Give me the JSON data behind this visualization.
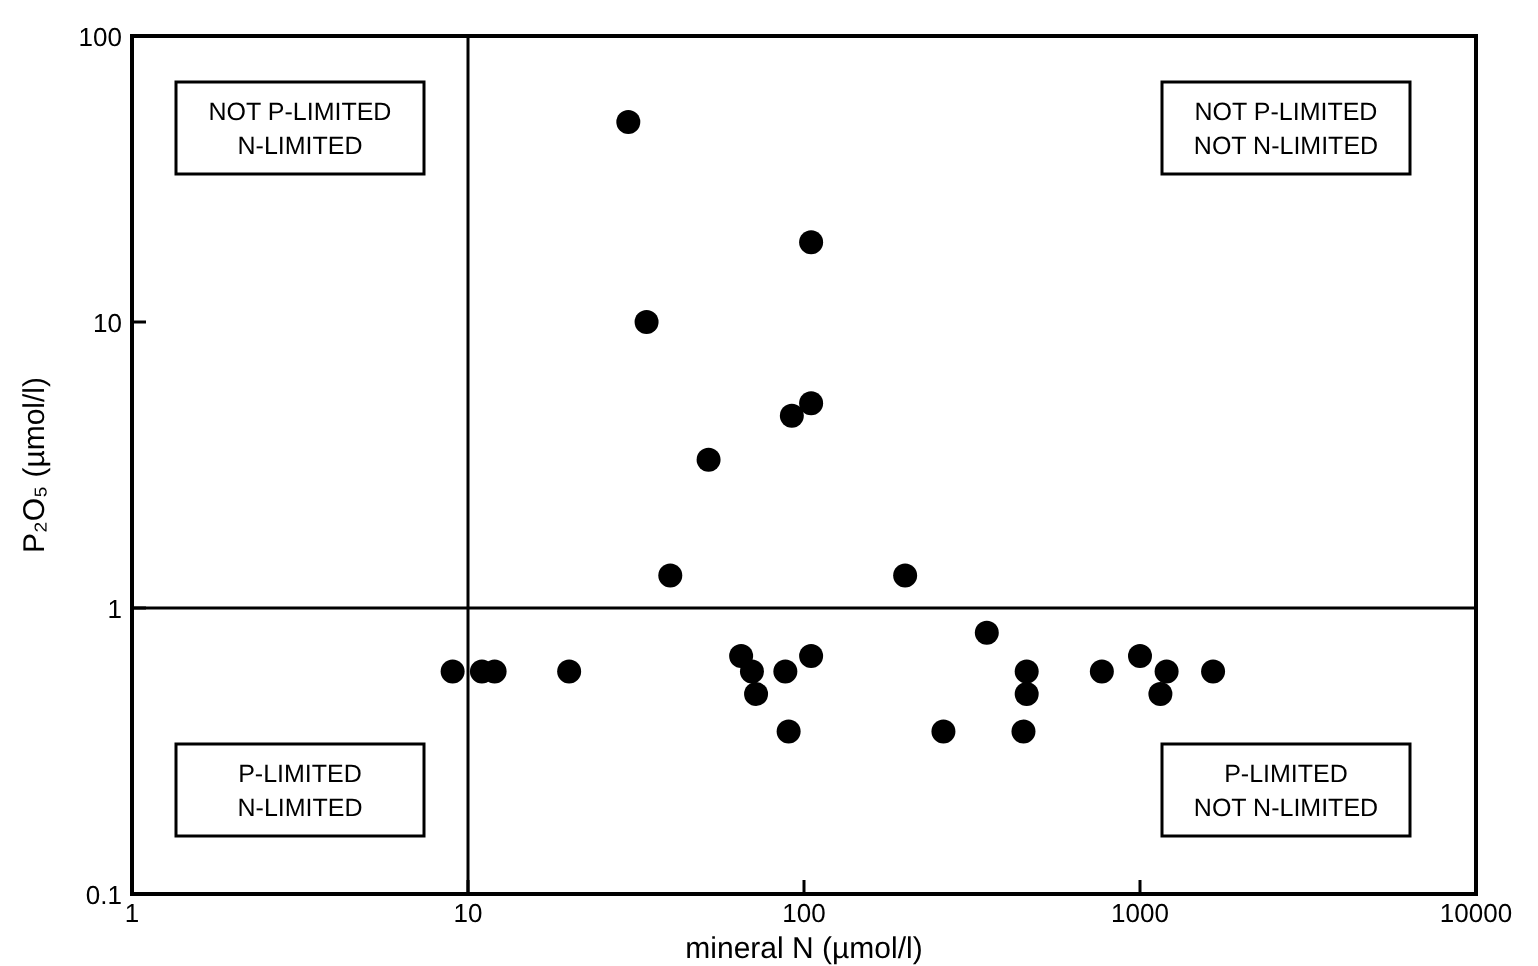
{
  "chart_data": {
    "type": "scatter",
    "xlabel": "mineral N (µmol/l)",
    "ylabel": "P₂O₅ (µmol/l)",
    "log": "xy",
    "xlim": [
      1,
      10000
    ],
    "ylim": [
      0.1,
      100
    ],
    "xticks": [
      1,
      10,
      100,
      1000,
      10000
    ],
    "yticks": [
      0.1,
      1,
      10,
      100
    ],
    "marker": "circle",
    "grid": false,
    "x": [
      30,
      34,
      40,
      52,
      92,
      105,
      105,
      200,
      9,
      11,
      12,
      20,
      65,
      70,
      72,
      88,
      90,
      105,
      350,
      260,
      460,
      460,
      450,
      770,
      1000,
      1150,
      1200,
      1650
    ],
    "values": [
      50,
      10,
      1.3,
      3.3,
      4.7,
      5.2,
      19,
      1.3,
      0.6,
      0.6,
      0.6,
      0.6,
      0.68,
      0.6,
      0.5,
      0.6,
      0.37,
      0.68,
      0.82,
      0.37,
      0.6,
      0.5,
      0.37,
      0.6,
      0.68,
      0.5,
      0.6,
      0.6
    ],
    "color": "#000000",
    "ref_lines": [
      {
        "axis": "x",
        "value": 10
      },
      {
        "axis": "y",
        "value": 1
      }
    ],
    "annotations": [
      "NOT P-LIMITED\nN-LIMITED",
      "NOT P-LIMITED\nNOT N-LIMITED",
      "P-LIMITED\nN-LIMITED",
      "P-LIMITED\nNOT N-LIMITED"
    ]
  }
}
